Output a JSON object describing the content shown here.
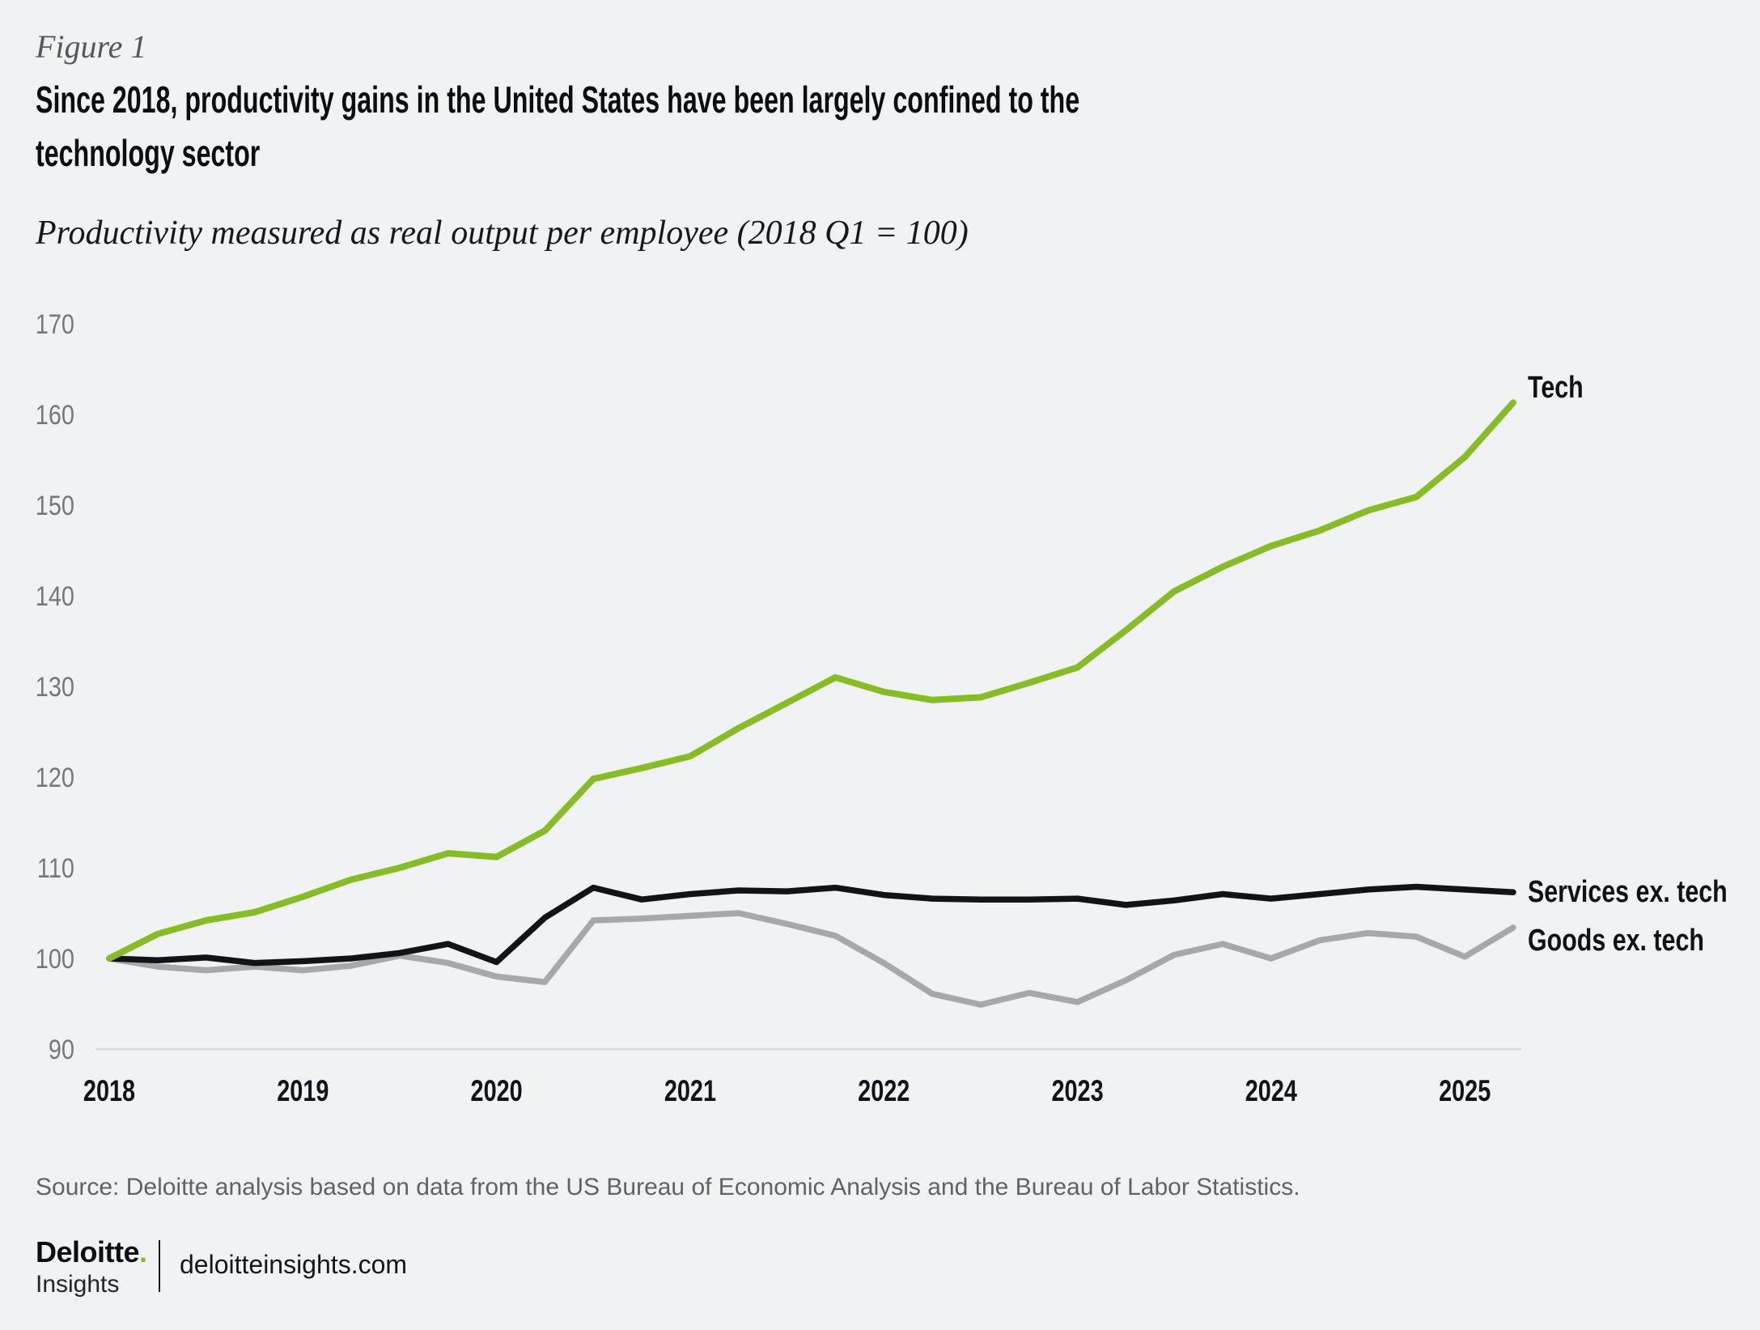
{
  "figure_label": "Figure 1",
  "title": {
    "line1": "Since 2018, productivity gains in the United States have been largely confined to the",
    "line2": "technology sector"
  },
  "subtitle": "Productivity measured as real output per employee (2018 Q1 = 100)",
  "chart_data": {
    "type": "line",
    "title": "",
    "xlabel": "",
    "ylabel": "",
    "frequency": "quarterly",
    "x_start": "2018 Q1",
    "x_end": "2025 Q2",
    "x_tick_labels": [
      "2018",
      "2019",
      "2020",
      "2021",
      "2022",
      "2023",
      "2024",
      "2025"
    ],
    "ylim": [
      90,
      170
    ],
    "yticks": [
      90,
      100,
      110,
      120,
      130,
      140,
      150,
      160,
      170
    ],
    "grid": false,
    "baseline_value": 90,
    "legend_position": "end-of-line labels",
    "colors": {
      "background": "#F1F2F3",
      "baseline": "#DBDBDD",
      "tick_text": "#75787B",
      "year_text": "#111318"
    },
    "series": [
      {
        "name": "Tech",
        "color": "#86BC25",
        "values": [
          100,
          102.7,
          104.2,
          105.1,
          106.8,
          108.7,
          110,
          111.6,
          111.2,
          114.1,
          119.8,
          121,
          122.3,
          125.4,
          128.2,
          131,
          129.4,
          128.5,
          128.8,
          130.4,
          132.1,
          136.2,
          140.5,
          143.2,
          145.5,
          147.2,
          149.4,
          150.9,
          155.3,
          161.3
        ]
      },
      {
        "name": "Services ex. tech",
        "color": "#121316",
        "values": [
          100,
          99.8,
          100.1,
          99.5,
          99.7,
          100,
          100.6,
          101.6,
          99.6,
          104.5,
          107.8,
          106.5,
          107.1,
          107.5,
          107.4,
          107.8,
          107,
          106.6,
          106.5,
          106.5,
          106.6,
          105.9,
          106.4,
          107.1,
          106.6,
          107.1,
          107.6,
          107.9,
          107.6,
          107.3
        ]
      },
      {
        "name": "Goods ex. tech",
        "color": "#A7A8AA",
        "values": [
          100,
          99.1,
          98.7,
          99.1,
          98.7,
          99.2,
          100.3,
          99.5,
          98,
          97.4,
          104.2,
          104.4,
          104.7,
          105,
          103.8,
          102.5,
          99.5,
          96.1,
          94.9,
          96.2,
          95.2,
          97.6,
          100.4,
          101.6,
          100,
          102,
          102.8,
          102.4,
          100.2,
          103.4
        ]
      }
    ]
  },
  "source_note": "Source: Deloitte analysis based on data from the US Bureau of Economic Analysis and the Bureau of Labor Statistics.",
  "footer": {
    "brand": "Deloitte",
    "brand_dot": ".",
    "brand_sub": "Insights",
    "url": "deloitteinsights.com",
    "brand_green": "#86BC25"
  }
}
